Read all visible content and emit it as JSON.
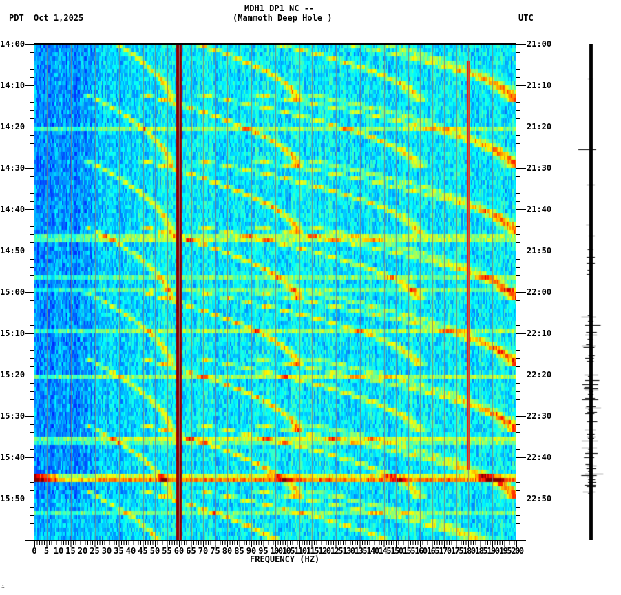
{
  "header": {
    "station_line": "MDH1 DP1 NC --",
    "station_name": "(Mammoth Deep Hole )",
    "left_tz": "PDT",
    "date": "Oct 1,2025",
    "right_tz": "UTC"
  },
  "footer_mark": "∴",
  "chart_data": {
    "type": "heatmap",
    "title": "MDH1 DP1 NC -- (Mammoth Deep Hole )",
    "subtitle": "Oct 1,2025",
    "xlabel": "FREQUENCY (HZ)",
    "ylabel_left": "PDT",
    "ylabel_right": "UTC",
    "xlim": [
      0,
      200
    ],
    "x_ticks": [
      0,
      5,
      10,
      15,
      20,
      25,
      30,
      35,
      40,
      45,
      50,
      55,
      60,
      65,
      70,
      75,
      80,
      85,
      90,
      95,
      100,
      105,
      110,
      115,
      120,
      125,
      130,
      135,
      140,
      145,
      150,
      155,
      160,
      165,
      170,
      175,
      180,
      185,
      190,
      195,
      200
    ],
    "y_ticks_left": [
      "14:00",
      "14:10",
      "14:20",
      "14:30",
      "14:40",
      "14:50",
      "15:00",
      "15:10",
      "15:20",
      "15:30",
      "15:40",
      "15:50"
    ],
    "y_ticks_right": [
      "21:00",
      "21:10",
      "21:20",
      "21:30",
      "21:40",
      "21:50",
      "22:00",
      "22:10",
      "22:20",
      "22:30",
      "22:40",
      "22:50"
    ],
    "time_range_minutes": 120,
    "colormap": "jet",
    "grid": "vertical lines every 5 Hz",
    "persistent_lines_hz": [
      {
        "freq": 60,
        "color": "#8b0000",
        "note": "strong persistent line"
      },
      {
        "freq": 180,
        "color": "#cc0000",
        "note": "thin persistent line"
      }
    ],
    "arc_sweeps": {
      "period_minutes": 16,
      "start_offsets_minutes": [
        -4,
        12,
        28,
        44,
        60,
        76,
        92,
        108
      ],
      "harmonics_start_hz": [
        21,
        44,
        67,
        90,
        113
      ],
      "harmonics_end_hz": [
        57,
        110,
        160,
        200,
        200
      ]
    },
    "events": [
      {
        "time": "15:45",
        "note": "broadband energy burst, strongest at 0-10 Hz"
      }
    ]
  },
  "seismogram": {
    "note": "vertical trace, amplitude increases after ~22:05 UTC",
    "color": "#000000"
  }
}
